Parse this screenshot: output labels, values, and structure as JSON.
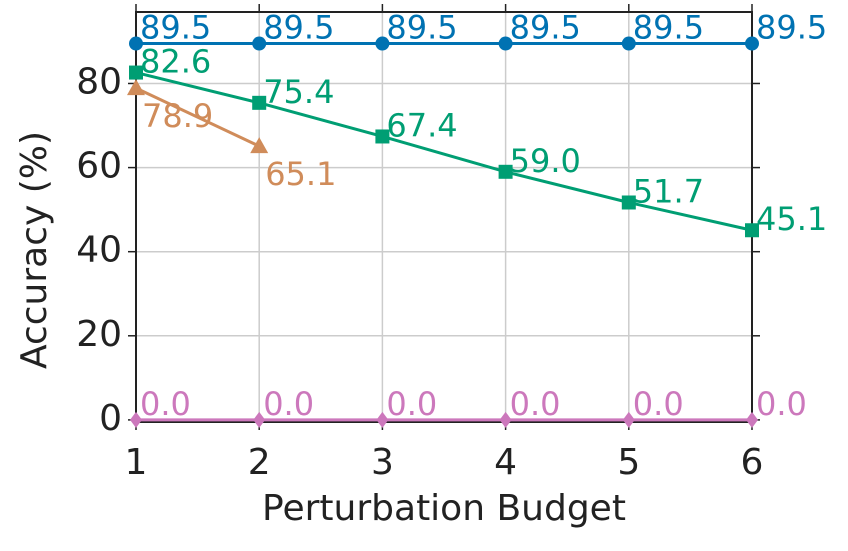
{
  "chart_data": {
    "type": "line",
    "x_label": "Perturbation Budget",
    "y_label": "Accuracy (%)",
    "x": [
      1,
      2,
      3,
      4,
      5,
      6
    ],
    "xlim": [
      1,
      6
    ],
    "xticks": [
      1,
      2,
      3,
      4,
      5,
      6
    ],
    "ylim": [
      -0.5,
      97
    ],
    "yticks": [
      0,
      20,
      40,
      60,
      80
    ],
    "grid": true,
    "series": [
      {
        "color": "#0072b2",
        "marker": "circle",
        "values": [
          89.5,
          89.5,
          89.5,
          89.5,
          89.5,
          89.5
        ],
        "value_labels": [
          "89.5",
          "89.5",
          "89.5",
          "89.5",
          "89.5",
          "89.5"
        ]
      },
      {
        "color": "#009e73",
        "marker": "square",
        "values": [
          82.6,
          75.4,
          67.4,
          59.0,
          51.7,
          45.1
        ],
        "value_labels": [
          "82.6",
          "75.4",
          "67.4",
          "59.0",
          "51.7",
          "45.1"
        ]
      },
      {
        "color": "#d08c5a",
        "marker": "triangle",
        "values": [
          78.9,
          65.1,
          null,
          null,
          null,
          null
        ],
        "value_labels": [
          "78.9",
          "65.1",
          null,
          null,
          null,
          null
        ]
      },
      {
        "color": "#cc78bc",
        "marker": "diamond",
        "values": [
          0.0,
          0.0,
          0.0,
          0.0,
          0.0,
          0.0
        ],
        "value_labels": [
          "0.0",
          "0.0",
          "0.0",
          "0.0",
          "0.0",
          "0.0"
        ]
      }
    ]
  }
}
